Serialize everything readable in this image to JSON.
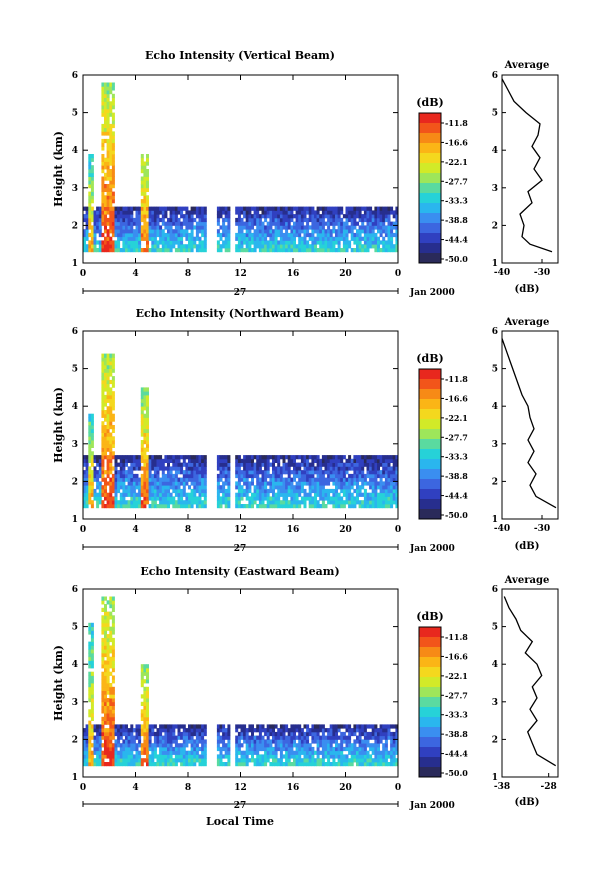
{
  "panels": [
    {
      "title": "Echo Intensity (Vertical Beam)",
      "ylabel": "Height (km)",
      "yticks": [
        "1",
        "2",
        "3",
        "4",
        "5",
        "6"
      ],
      "xticks": [
        "0",
        "4",
        "8",
        "12",
        "16",
        "20",
        "0"
      ],
      "day_label": "27",
      "date_label": "Jan 2000",
      "xlabel": "",
      "avg_title": "Average",
      "avg_xlabel": "(dB)",
      "avg_xticks": [
        "-40",
        "-30"
      ],
      "avg_yticks": [
        "1",
        "2",
        "3",
        "4",
        "5",
        "6"
      ]
    },
    {
      "title": "Echo Intensity (Northward Beam)",
      "ylabel": "Height (km)",
      "yticks": [
        "1",
        "2",
        "3",
        "4",
        "5",
        "6"
      ],
      "xticks": [
        "0",
        "4",
        "8",
        "12",
        "16",
        "20",
        "0"
      ],
      "day_label": "27",
      "date_label": "Jan 2000",
      "xlabel": "",
      "avg_title": "Average",
      "avg_xlabel": "(dB)",
      "avg_xticks": [
        "-40",
        "-30"
      ],
      "avg_yticks": [
        "1",
        "2",
        "3",
        "4",
        "5",
        "6"
      ]
    },
    {
      "title": "Echo Intensity (Eastward Beam)",
      "ylabel": "Height (km)",
      "yticks": [
        "1",
        "2",
        "3",
        "4",
        "5",
        "6"
      ],
      "xticks": [
        "0",
        "4",
        "8",
        "12",
        "16",
        "20",
        "0"
      ],
      "day_label": "27",
      "date_label": "Jan 2000",
      "xlabel": "Local Time",
      "avg_title": "Average",
      "avg_xlabel": "(dB)",
      "avg_xticks": [
        "-38",
        "-28"
      ],
      "avg_yticks": [
        "1",
        "2",
        "3",
        "4",
        "5",
        "6"
      ]
    }
  ],
  "colorbar": {
    "unit": "(dB)",
    "labels": [
      "-11.8",
      "-16.6",
      "-22.1",
      "-27.7",
      "-33.3",
      "-38.8",
      "-44.4",
      "-50.0"
    ],
    "colors": [
      "#e8281e",
      "#f2551a",
      "#f78a16",
      "#fbb516",
      "#f4d81e",
      "#d2ea28",
      "#9ee65a",
      "#5adaa0",
      "#26d2d8",
      "#2ab6ee",
      "#3a8ef0",
      "#3c66e0",
      "#3040c0",
      "#272e8e",
      "#2a2a5a"
    ]
  },
  "chart_data": [
    {
      "type": "heatmap",
      "title": "Echo Intensity (Vertical Beam)",
      "xlabel": "",
      "ylabel": "Height (km)",
      "x_unit": "hour (local time), 27 Jan 2000",
      "xlim": [
        0,
        24
      ],
      "ylim": [
        1,
        6
      ],
      "z_unit": "dB",
      "zlim": [
        -50.0,
        -11.8
      ],
      "data_gaps_hours": [
        [
          9.4,
          10.2
        ],
        [
          11.2,
          11.6
        ]
      ],
      "features": [
        {
          "hours": [
            0.5,
            0.9
          ],
          "height_km": [
            1.3,
            3.9
          ],
          "peak_db": -20
        },
        {
          "hours": [
            1.4,
            2.4
          ],
          "height_km": [
            1.3,
            5.7
          ],
          "peak_db": -14
        },
        {
          "hours": [
            4.5,
            5.1
          ],
          "height_km": [
            1.3,
            3.9
          ],
          "peak_db": -16
        },
        {
          "hours": [
            0,
            24
          ],
          "height_km": [
            1.3,
            2.5
          ],
          "peak_db": -33
        }
      ],
      "profile": {
        "title": "Average",
        "xlabel": "(dB)",
        "xlim": [
          -40,
          -26
        ],
        "height_km": [
          1.3,
          1.5,
          1.7,
          2.0,
          2.3,
          2.6,
          2.9,
          3.2,
          3.5,
          3.8,
          4.1,
          4.4,
          4.7,
          5.0,
          5.3,
          5.6,
          5.9
        ],
        "db": [
          -27.5,
          -33.0,
          -35.0,
          -34.5,
          -35.5,
          -32.5,
          -33.5,
          -30.0,
          -32.0,
          -30.5,
          -32.5,
          -31.0,
          -30.5,
          -34.0,
          -37.0,
          -38.5,
          -40.0
        ]
      }
    },
    {
      "type": "heatmap",
      "title": "Echo Intensity (Northward Beam)",
      "xlabel": "",
      "ylabel": "Height (km)",
      "x_unit": "hour (local time), 27 Jan 2000",
      "xlim": [
        0,
        24
      ],
      "ylim": [
        1,
        6
      ],
      "z_unit": "dB",
      "zlim": [
        -50.0,
        -11.8
      ],
      "data_gaps_hours": [
        [
          9.4,
          10.2
        ],
        [
          11.2,
          11.6
        ]
      ],
      "features": [
        {
          "hours": [
            0.5,
            0.9
          ],
          "height_km": [
            1.3,
            3.8
          ],
          "peak_db": -20
        },
        {
          "hours": [
            1.4,
            2.4
          ],
          "height_km": [
            1.3,
            5.3
          ],
          "peak_db": -14
        },
        {
          "hours": [
            4.4,
            5.1
          ],
          "height_km": [
            1.3,
            4.5
          ],
          "peak_db": -16
        },
        {
          "hours": [
            0,
            24
          ],
          "height_km": [
            1.3,
            2.7
          ],
          "peak_db": -33
        }
      ],
      "profile": {
        "title": "Average",
        "xlabel": "(dB)",
        "xlim": [
          -40,
          -26
        ],
        "height_km": [
          1.3,
          1.6,
          1.9,
          2.2,
          2.5,
          2.8,
          3.1,
          3.4,
          3.7,
          4.0,
          4.3,
          4.6,
          4.9,
          5.2,
          5.5,
          5.8
        ],
        "db": [
          -26.5,
          -31.5,
          -33.0,
          -31.5,
          -33.5,
          -32.0,
          -33.5,
          -32.0,
          -33.0,
          -33.5,
          -35.0,
          -36.0,
          -37.0,
          -38.0,
          -39.0,
          -40.0
        ]
      }
    },
    {
      "type": "heatmap",
      "title": "Echo Intensity (Eastward Beam)",
      "xlabel": "Local Time",
      "ylabel": "Height (km)",
      "x_unit": "hour (local time), 27 Jan 2000",
      "xlim": [
        0,
        24
      ],
      "ylim": [
        1,
        6
      ],
      "z_unit": "dB",
      "zlim": [
        -50.0,
        -11.8
      ],
      "data_gaps_hours": [
        [
          9.4,
          10.2
        ],
        [
          11.2,
          11.6
        ]
      ],
      "features": [
        {
          "hours": [
            0.5,
            0.9
          ],
          "height_km": [
            1.3,
            5.0
          ],
          "peak_db": -20
        },
        {
          "hours": [
            1.4,
            2.4
          ],
          "height_km": [
            1.3,
            5.7
          ],
          "peak_db": -14
        },
        {
          "hours": [
            4.4,
            5.1
          ],
          "height_km": [
            1.3,
            4.0
          ],
          "peak_db": -16
        },
        {
          "hours": [
            0,
            24
          ],
          "height_km": [
            1.3,
            2.4
          ],
          "peak_db": -33
        }
      ],
      "profile": {
        "title": "Average",
        "xlabel": "(dB)",
        "xlim": [
          -38,
          -26
        ],
        "height_km": [
          1.3,
          1.6,
          1.9,
          2.2,
          2.5,
          2.8,
          3.1,
          3.4,
          3.7,
          4.0,
          4.3,
          4.6,
          4.9,
          5.2,
          5.5,
          5.8
        ],
        "db": [
          -26.5,
          -30.5,
          -31.5,
          -32.5,
          -30.5,
          -32.0,
          -30.5,
          -31.5,
          -29.5,
          -30.5,
          -33.0,
          -31.5,
          -34.0,
          -35.0,
          -36.5,
          -37.5
        ]
      }
    }
  ]
}
